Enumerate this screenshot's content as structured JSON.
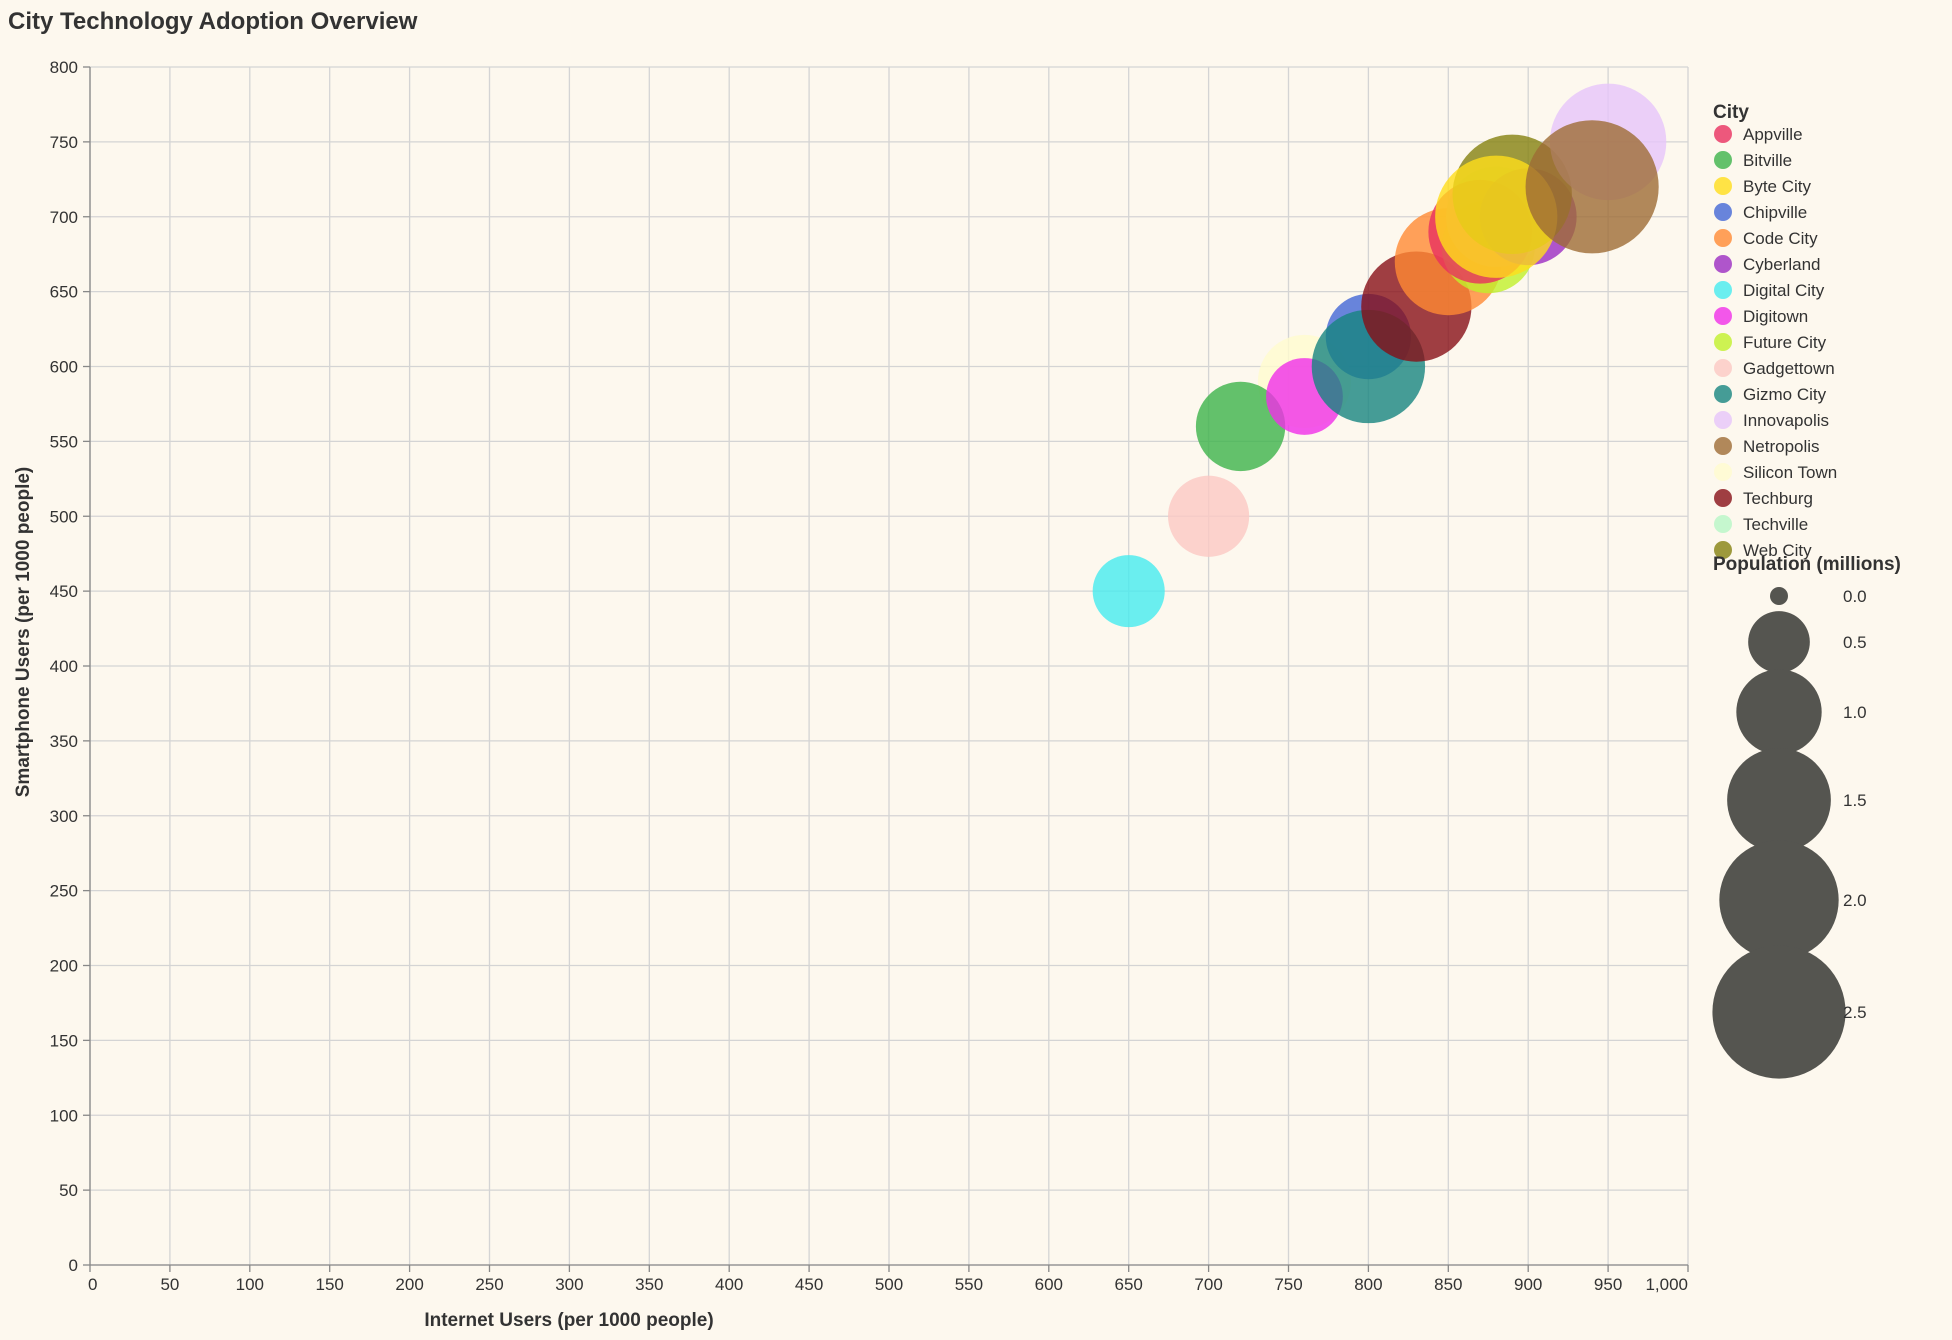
{
  "chart_data": {
    "type": "scatter",
    "title": "City Technology Adoption Overview",
    "xlabel": "Internet Users (per 1000 people)",
    "ylabel": "Smartphone Users (per 1000 people)",
    "xlim": [
      0,
      1000
    ],
    "ylim": [
      0,
      800
    ],
    "x_ticks": [
      "0",
      "50",
      "100",
      "150",
      "200",
      "250",
      "300",
      "350",
      "400",
      "450",
      "500",
      "550",
      "600",
      "650",
      "700",
      "750",
      "800",
      "850",
      "900",
      "950",
      "1,000"
    ],
    "y_ticks": [
      "0",
      "50",
      "100",
      "150",
      "200",
      "250",
      "300",
      "350",
      "400",
      "450",
      "500",
      "550",
      "600",
      "650",
      "700",
      "750",
      "800"
    ],
    "grid": true,
    "color_legend": {
      "title": "City",
      "placement": "right"
    },
    "size_legend": {
      "title": "Population (millions)",
      "values": [
        0.0,
        0.5,
        1.0,
        1.5,
        2.0,
        2.5
      ],
      "labels": [
        "0.0",
        "0.5",
        "1.0",
        "1.5",
        "2.0",
        "2.5"
      ]
    },
    "series": [
      {
        "name": "Appville",
        "color": "#e8305f",
        "x": 870,
        "y": 690,
        "population": 1.5
      },
      {
        "name": "Bitville",
        "color": "#3cb34a",
        "x": 720,
        "y": 560,
        "population": 1.1
      },
      {
        "name": "Byte City",
        "color": "#ffdd1a",
        "x": 880,
        "y": 700,
        "population": 2.1
      },
      {
        "name": "Chipville",
        "color": "#4266d6",
        "x": 800,
        "y": 620,
        "population": 1.0
      },
      {
        "name": "Code City",
        "color": "#ff8a33",
        "x": 850,
        "y": 670,
        "population": 1.6
      },
      {
        "name": "Cyberland",
        "color": "#9b2cc2",
        "x": 900,
        "y": 700,
        "population": 1.3
      },
      {
        "name": "Digital City",
        "color": "#45ebef",
        "x": 650,
        "y": 450,
        "population": 0.7
      },
      {
        "name": "Digitown",
        "color": "#f02ee8",
        "x": 760,
        "y": 580,
        "population": 0.8
      },
      {
        "name": "Future City",
        "color": "#c0f02a",
        "x": 875,
        "y": 680,
        "population": 1.2
      },
      {
        "name": "Gadgettown",
        "color": "#fbc8c3",
        "x": 700,
        "y": 500,
        "population": 0.9
      },
      {
        "name": "Gizmo City",
        "color": "#16857f",
        "x": 800,
        "y": 600,
        "population": 1.8
      },
      {
        "name": "Innovapolis",
        "color": "#e6c4fa",
        "x": 950,
        "y": 750,
        "population": 1.9
      },
      {
        "name": "Netropolis",
        "color": "#9e6b35",
        "x": 940,
        "y": 720,
        "population": 2.5
      },
      {
        "name": "Silicon Town",
        "color": "#fffbce",
        "x": 760,
        "y": 590,
        "population": 1.2
      },
      {
        "name": "Techburg",
        "color": "#870f17",
        "x": 830,
        "y": 640,
        "population": 1.7
      },
      {
        "name": "Techville",
        "color": "#b6f6c5",
        "x": 880,
        "y": 700,
        "population": 1.4
      },
      {
        "name": "Web City",
        "color": "#84810f",
        "x": 890,
        "y": 715,
        "population": 2.0
      }
    ],
    "draw_order": [
      "Silicon Town",
      "Gadgettown",
      "Bitville",
      "Digital City",
      "Digitown",
      "Chipville",
      "Gizmo City",
      "Techburg",
      "Code City",
      "Future City",
      "Techville",
      "Appville",
      "Cyberland",
      "Web City",
      "Byte City",
      "Innovapolis",
      "Netropolis"
    ],
    "mark_opacity": 0.8,
    "size_legend_color": "#555550"
  }
}
